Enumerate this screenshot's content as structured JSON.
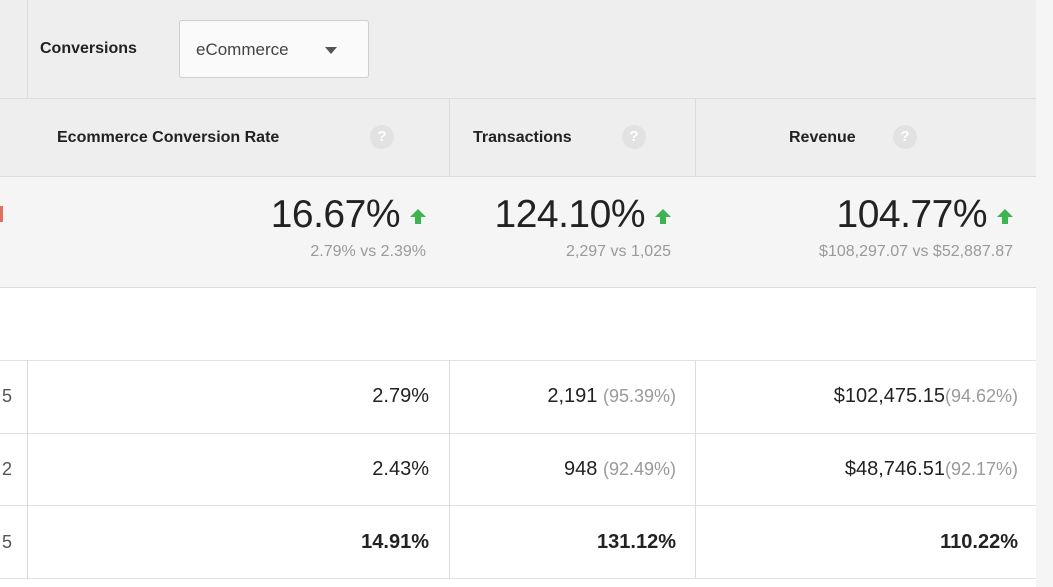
{
  "selector": {
    "label": "Conversions",
    "value": "eCommerce"
  },
  "columns": [
    {
      "title": "Ecommerce Conversion Rate",
      "help": "?"
    },
    {
      "title": "Transactions",
      "help": "?"
    },
    {
      "title": "Revenue",
      "help": "?"
    }
  ],
  "summary": [
    {
      "change": "16.67%",
      "compare": "2.79% vs 2.39%",
      "trend": "up"
    },
    {
      "change": "124.10%",
      "compare": "2,297 vs 1,025",
      "trend": "up"
    },
    {
      "change": "104.77%",
      "compare": "$108,297.07 vs $52,887.87",
      "trend": "up"
    }
  ],
  "rows": [
    {
      "left_fragment": "5",
      "cells": [
        {
          "value": "2.79%",
          "pct": ""
        },
        {
          "value": "2,191",
          "pct": "(95.39%)"
        },
        {
          "value": "$102,475.15",
          "pct": "(94.62%)"
        }
      ]
    },
    {
      "left_fragment": "2",
      "cells": [
        {
          "value": "2.43%",
          "pct": ""
        },
        {
          "value": "948",
          "pct": "(92.49%)"
        },
        {
          "value": "$48,746.51",
          "pct": "(92.17%)"
        }
      ]
    },
    {
      "left_fragment": "5",
      "cells": [
        {
          "value": "14.91%",
          "pct": ""
        },
        {
          "value": "131.12%",
          "pct": ""
        },
        {
          "value": "110.22%",
          "pct": ""
        }
      ]
    }
  ],
  "colors": {
    "up_arrow": "#3fb34f",
    "header_bg": "#eeeeee",
    "summary_bg": "#f5f5f5"
  }
}
